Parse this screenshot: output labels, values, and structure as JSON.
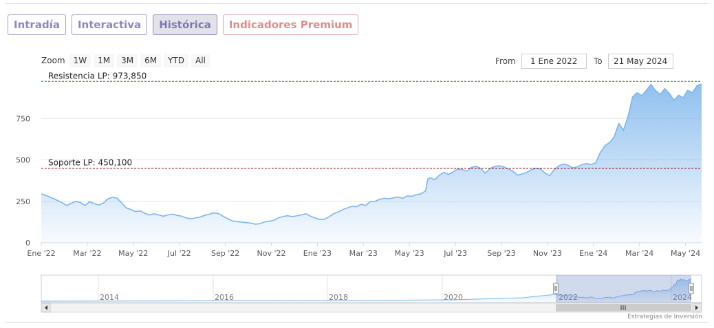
{
  "tabs": [
    "Intradía",
    "Interactiva",
    "Histórica",
    "Indicadores Premium"
  ],
  "zoom": {
    "label": "Zoom",
    "buttons": [
      "1W",
      "1M",
      "3M",
      "6M",
      "YTD",
      "All"
    ]
  },
  "range": {
    "from_label": "From",
    "from_value": "1 Ene 2022",
    "to_label": "To",
    "to_value": "21 May 2024"
  },
  "credits": "Estrategias de Inversión",
  "colors": {
    "line": "#7cb5ec",
    "resistance": "#2e7d32",
    "support": "#8b0000",
    "active_tab": "#7d78b3"
  },
  "chart_data": {
    "type": "area",
    "y_ticks": [
      0,
      250,
      500,
      750
    ],
    "ylim": [
      0,
      1000
    ],
    "x_tick_labels": [
      "Ene '22",
      "Mar '22",
      "May '22",
      "Jul '22",
      "Sep '22",
      "Nov '22",
      "Ene '23",
      "Mar '23",
      "May '23",
      "Jul '23",
      "Sep '23",
      "Nov '23",
      "Ene '24",
      "Mar '24",
      "May '24"
    ],
    "x_tick_months": [
      0,
      2,
      4,
      6,
      8,
      10,
      12,
      14,
      16,
      18,
      20,
      22,
      24,
      26,
      28
    ],
    "xlim_months": [
      0,
      28.7
    ],
    "series": [
      {
        "points": [
          [
            0,
            295
          ],
          [
            0.3,
            280
          ],
          [
            0.6,
            262
          ],
          [
            0.9,
            242
          ],
          [
            1.1,
            225
          ],
          [
            1.3,
            238
          ],
          [
            1.5,
            250
          ],
          [
            1.7,
            243
          ],
          [
            1.9,
            225
          ],
          [
            2.1,
            248
          ],
          [
            2.3,
            236
          ],
          [
            2.5,
            228
          ],
          [
            2.7,
            240
          ],
          [
            2.9,
            265
          ],
          [
            3.1,
            275
          ],
          [
            3.3,
            268
          ],
          [
            3.5,
            240
          ],
          [
            3.7,
            210
          ],
          [
            3.9,
            200
          ],
          [
            4.1,
            188
          ],
          [
            4.3,
            192
          ],
          [
            4.5,
            178
          ],
          [
            4.7,
            168
          ],
          [
            4.9,
            175
          ],
          [
            5.1,
            168
          ],
          [
            5.3,
            160
          ],
          [
            5.5,
            168
          ],
          [
            5.7,
            172
          ],
          [
            5.9,
            165
          ],
          [
            6.1,
            160
          ],
          [
            6.3,
            150
          ],
          [
            6.5,
            145
          ],
          [
            6.7,
            150
          ],
          [
            6.9,
            155
          ],
          [
            7.1,
            165
          ],
          [
            7.3,
            172
          ],
          [
            7.5,
            180
          ],
          [
            7.7,
            176
          ],
          [
            7.9,
            160
          ],
          [
            8.1,
            145
          ],
          [
            8.3,
            132
          ],
          [
            8.5,
            128
          ],
          [
            8.7,
            125
          ],
          [
            8.9,
            122
          ],
          [
            9.1,
            118
          ],
          [
            9.3,
            112
          ],
          [
            9.5,
            115
          ],
          [
            9.7,
            125
          ],
          [
            9.9,
            130
          ],
          [
            10.1,
            135
          ],
          [
            10.3,
            150
          ],
          [
            10.5,
            158
          ],
          [
            10.7,
            163
          ],
          [
            10.9,
            158
          ],
          [
            11.1,
            162
          ],
          [
            11.3,
            168
          ],
          [
            11.5,
            175
          ],
          [
            11.7,
            160
          ],
          [
            11.9,
            150
          ],
          [
            12.1,
            140
          ],
          [
            12.3,
            142
          ],
          [
            12.5,
            155
          ],
          [
            12.7,
            175
          ],
          [
            12.9,
            185
          ],
          [
            13.1,
            200
          ],
          [
            13.3,
            210
          ],
          [
            13.5,
            220
          ],
          [
            13.7,
            218
          ],
          [
            13.9,
            232
          ],
          [
            14.1,
            225
          ],
          [
            14.3,
            248
          ],
          [
            14.5,
            250
          ],
          [
            14.7,
            262
          ],
          [
            14.9,
            268
          ],
          [
            15.1,
            265
          ],
          [
            15.3,
            270
          ],
          [
            15.5,
            276
          ],
          [
            15.7,
            268
          ],
          [
            15.9,
            282
          ],
          [
            16.1,
            280
          ],
          [
            16.3,
            290
          ],
          [
            16.5,
            295
          ],
          [
            16.7,
            312
          ],
          [
            16.8,
            385
          ],
          [
            16.9,
            392
          ],
          [
            17.1,
            380
          ],
          [
            17.3,
            408
          ],
          [
            17.5,
            425
          ],
          [
            17.7,
            412
          ],
          [
            17.9,
            428
          ],
          [
            18.1,
            445
          ],
          [
            18.3,
            442
          ],
          [
            18.5,
            432
          ],
          [
            18.7,
            455
          ],
          [
            18.9,
            462
          ],
          [
            19.1,
            448
          ],
          [
            19.3,
            420
          ],
          [
            19.5,
            448
          ],
          [
            19.7,
            460
          ],
          [
            19.9,
            465
          ],
          [
            20.1,
            458
          ],
          [
            20.3,
            445
          ],
          [
            20.5,
            432
          ],
          [
            20.7,
            408
          ],
          [
            20.9,
            415
          ],
          [
            21.1,
            425
          ],
          [
            21.3,
            440
          ],
          [
            21.5,
            450
          ],
          [
            21.7,
            445
          ],
          [
            21.9,
            420
          ],
          [
            22.1,
            405
          ],
          [
            22.3,
            442
          ],
          [
            22.5,
            465
          ],
          [
            22.7,
            475
          ],
          [
            22.9,
            468
          ],
          [
            23.1,
            452
          ],
          [
            23.3,
            458
          ],
          [
            23.5,
            472
          ],
          [
            23.7,
            478
          ],
          [
            23.9,
            472
          ],
          [
            24.1,
            482
          ],
          [
            24.3,
            545
          ],
          [
            24.5,
            585
          ],
          [
            24.7,
            605
          ],
          [
            24.9,
            640
          ],
          [
            25.1,
            720
          ],
          [
            25.3,
            680
          ],
          [
            25.5,
            760
          ],
          [
            25.7,
            880
          ],
          [
            25.9,
            905
          ],
          [
            26.1,
            888
          ],
          [
            26.3,
            920
          ],
          [
            26.5,
            955
          ],
          [
            26.7,
            918
          ],
          [
            26.9,
            895
          ],
          [
            27.1,
            930
          ],
          [
            27.3,
            900
          ],
          [
            27.5,
            860
          ],
          [
            27.7,
            890
          ],
          [
            27.9,
            875
          ],
          [
            28.1,
            920
          ],
          [
            28.3,
            905
          ],
          [
            28.5,
            948
          ],
          [
            28.7,
            958
          ]
        ]
      }
    ],
    "annotations": [
      {
        "label": "Resistencia LP: 973,850",
        "value": 973.85,
        "style": "dashed"
      },
      {
        "label": "Soporte LP: 450,100",
        "value": 450.1,
        "style": "dashed"
      }
    ],
    "navigator": {
      "labels": [
        "2014",
        "2016",
        "2018",
        "2020",
        "2022",
        "2024"
      ]
    }
  }
}
